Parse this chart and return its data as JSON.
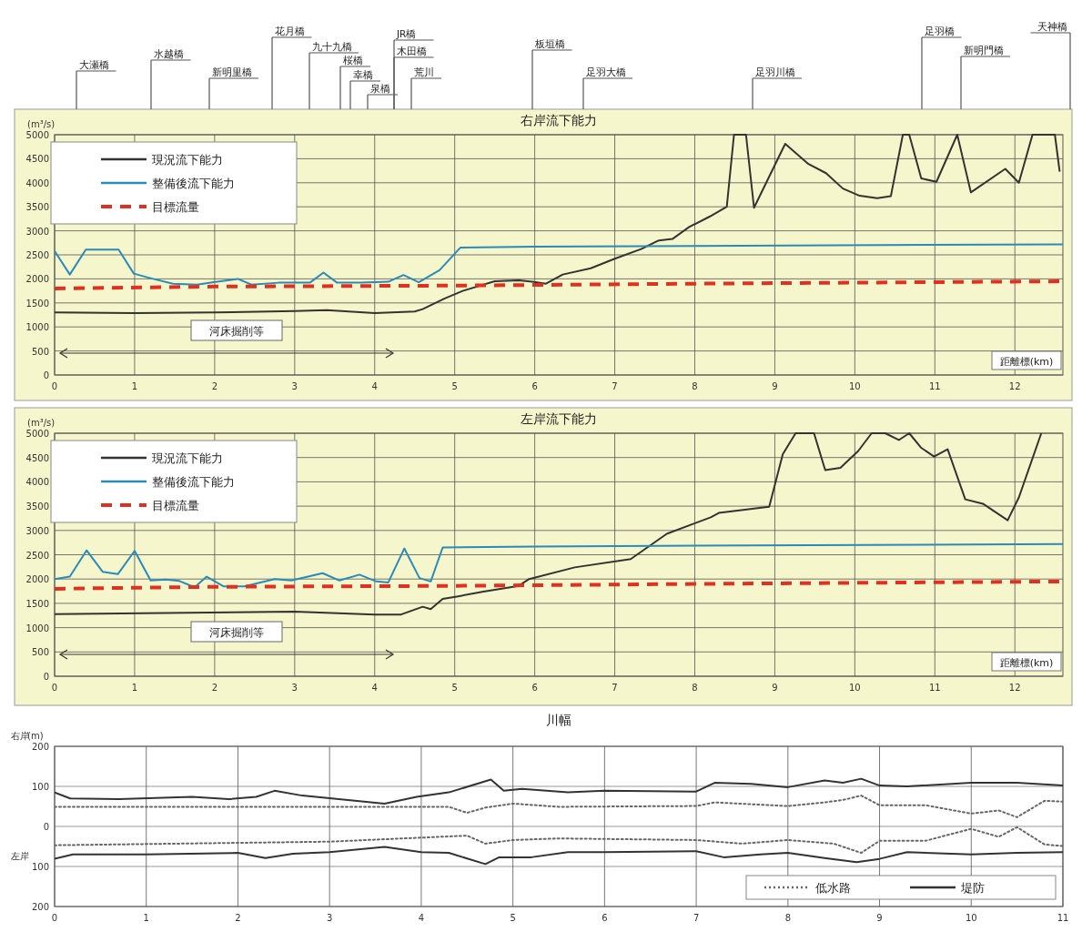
{
  "chart_data": [
    {
      "type": "line",
      "title": "右岸流下能力",
      "ylabel": "(m³/s)",
      "xlabel": "距離標(km)",
      "xlim": [
        0,
        12.6
      ],
      "xticks": [
        0,
        1,
        2,
        3,
        4,
        5,
        6,
        7,
        8,
        9,
        10,
        11,
        12
      ],
      "ylim": [
        0,
        5000
      ],
      "yticks": [
        0,
        500,
        1000,
        1500,
        2000,
        2500,
        3000,
        3500,
        4000,
        4500,
        5000
      ],
      "grid": true,
      "legend": "top left",
      "annotations": [
        "河床掘削等",
        "大瀬橋",
        "水越橋",
        "新明里橋",
        "花月橋",
        "九十九橋",
        "桜橋",
        "幸橋",
        "泉橋",
        "JR橋",
        "木田橋",
        "荒川",
        "板垣橋",
        "足羽大橋",
        "足羽川橋",
        "足羽橋",
        "新明門橋",
        "天神橋"
      ],
      "series": [
        {
          "name": "現況流下能力",
          "color": "#333333",
          "x": [
            0,
            1,
            2,
            3,
            3.4,
            4,
            4.5,
            4.6,
            4.87,
            5.1,
            5.5,
            5.8,
            5.97,
            6.14,
            6.35,
            6.7,
            7,
            7.33,
            7.55,
            7.72,
            7.93,
            8.19,
            8.4,
            8.49,
            8.64,
            8.74,
            9.13,
            9.42,
            9.64,
            9.85,
            10.06,
            10.28,
            10.45,
            10.6,
            10.68,
            10.83,
            11.02,
            11.28,
            11.45,
            11.88,
            12.05,
            12.22,
            12.5,
            12.56
          ],
          "values": [
            1300,
            1290,
            1300,
            1330,
            1350,
            1290,
            1320,
            1370,
            1590,
            1750,
            1950,
            1970,
            1940,
            1900,
            2090,
            2220,
            2420,
            2620,
            2800,
            2830,
            3080,
            3300,
            3500,
            5000,
            5000,
            3480,
            4810,
            4390,
            4200,
            3880,
            3730,
            3680,
            3720,
            5000,
            5000,
            4090,
            4020,
            5000,
            3800,
            4290,
            4000,
            5000,
            5000,
            4230
          ]
        },
        {
          "name": "整備後流下能力",
          "color": "#2a8ab8",
          "x": [
            0,
            0.19,
            0.39,
            0.8,
            0.99,
            1.23,
            1.48,
            1.78,
            1.99,
            2.29,
            2.46,
            2.8,
            3.19,
            3.36,
            3.53,
            3.83,
            4.17,
            4.36,
            4.55,
            4.81,
            5.07,
            6,
            12.6
          ],
          "values": [
            2580,
            2090,
            2610,
            2610,
            2110,
            2000,
            1900,
            1880,
            1930,
            2000,
            1880,
            1920,
            1920,
            2130,
            1920,
            1920,
            1940,
            2080,
            1930,
            2180,
            2650,
            2670,
            2720
          ]
        },
        {
          "name": "目標流量",
          "color": "#e03020",
          "line_style": "dashed",
          "x": [
            0,
            2,
            5,
            8,
            12.6
          ],
          "values": [
            1800,
            1840,
            1860,
            1900,
            1950
          ]
        }
      ]
    },
    {
      "type": "line",
      "title": "左岸流下能力",
      "ylabel": "(m³/s)",
      "xlabel": "距離標(km)",
      "xlim": [
        0,
        12.6
      ],
      "xticks": [
        0,
        1,
        2,
        3,
        4,
        5,
        6,
        7,
        8,
        9,
        10,
        11,
        12
      ],
      "ylim": [
        0,
        5000
      ],
      "yticks": [
        0,
        500,
        1000,
        1500,
        2000,
        2500,
        3000,
        3500,
        4000,
        4500,
        5000
      ],
      "grid": true,
      "legend": "top left",
      "annotations": [
        "河床掘削等"
      ],
      "series": [
        {
          "name": "現況流下能力",
          "color": "#333333",
          "x": [
            0,
            3,
            4,
            4.33,
            4.6,
            4.7,
            4.85,
            5.06,
            5.36,
            5.8,
            5.93,
            6.5,
            7.2,
            7.65,
            8.2,
            8.3,
            8.93,
            9.1,
            9.26,
            9.49,
            9.63,
            9.82,
            10.04,
            10.21,
            10.38,
            10.55,
            10.68,
            10.83,
            10.99,
            11.16,
            11.38,
            11.6,
            11.91,
            12.05,
            12.33
          ],
          "values": [
            1280,
            1330,
            1270,
            1270,
            1430,
            1380,
            1590,
            1650,
            1740,
            1860,
            2000,
            2240,
            2410,
            2930,
            3270,
            3360,
            3490,
            4570,
            5000,
            5000,
            4240,
            4290,
            4630,
            5000,
            5000,
            4860,
            5000,
            4700,
            4520,
            4670,
            3640,
            3550,
            3210,
            3680,
            5000
          ]
        },
        {
          "name": "整備後流下能力",
          "color": "#2a8ab8",
          "x": [
            0,
            0.19,
            0.4,
            0.6,
            0.79,
            1,
            1.2,
            1.39,
            1.56,
            1.75,
            1.9,
            2.11,
            2.37,
            2.75,
            2.96,
            3.35,
            3.56,
            3.81,
            4.02,
            4.17,
            4.37,
            4.56,
            4.7,
            4.85,
            6,
            12.6
          ],
          "values": [
            2000,
            2050,
            2590,
            2150,
            2100,
            2580,
            1970,
            1990,
            1960,
            1830,
            2050,
            1850,
            1850,
            2000,
            1970,
            2120,
            1970,
            2090,
            1950,
            1930,
            2630,
            2020,
            1950,
            2650,
            2670,
            2720
          ]
        },
        {
          "name": "目標流量",
          "color": "#e03020",
          "line_style": "dashed",
          "x": [
            0,
            2,
            5,
            8,
            12.6
          ],
          "values": [
            1800,
            1840,
            1860,
            1900,
            1950
          ]
        }
      ]
    },
    {
      "type": "line",
      "title": "川幅",
      "ylabel": "(m)",
      "xlim": [
        0,
        11
      ],
      "xticks": [
        0,
        1,
        2,
        3,
        4,
        5,
        6,
        7,
        8,
        9,
        10,
        11
      ],
      "ylim": [
        -200,
        200
      ],
      "yticks": [
        {
          "value": -200,
          "label": "200"
        },
        {
          "value": -100,
          "label": "100"
        },
        0,
        100,
        200
      ],
      "grid": true,
      "legend": "bottom right",
      "annotations": [
        "右岸",
        "左岸"
      ],
      "series": [
        {
          "name": "低水路",
          "color": "#666666",
          "line_style": "dotted",
          "x": [
            0,
            4.3,
            4.5,
            4.7,
            5,
            5.5,
            7,
            7.2,
            8,
            8.4,
            8.6,
            8.8,
            9,
            9.5,
            10,
            10.3,
            10.5,
            10.8,
            11
          ],
          "values": [
            49,
            49,
            34,
            47,
            57,
            49,
            51,
            60,
            51,
            60,
            66,
            77,
            53,
            53,
            32,
            40,
            23,
            64,
            62
          ]
        },
        {
          "color": "#666666",
          "line_style": "dotted",
          "x": [
            0,
            3,
            4.5,
            4.7,
            5,
            5.5,
            7,
            7.5,
            8,
            8.5,
            8.8,
            9,
            9.5,
            10,
            10.3,
            10.5,
            10.8,
            11
          ],
          "values": [
            -47,
            -38,
            -23,
            -43,
            -34,
            -30,
            -34,
            -43,
            -34,
            -43,
            -66,
            -36,
            -36,
            -6,
            -26,
            -2,
            -45,
            -49
          ]
        },
        {
          "name": "堤防",
          "color": "#333333",
          "x": [
            0,
            0.17,
            0.7,
            1.5,
            1.9,
            2.2,
            2.4,
            2.7,
            3.1,
            3.6,
            3.95,
            4.3,
            4.76,
            4.9,
            5.1,
            5.6,
            6,
            7,
            7.2,
            7.6,
            8,
            8.4,
            8.6,
            8.8,
            9,
            9.3,
            10,
            10.5,
            11
          ],
          "values": [
            85,
            70,
            68,
            74,
            68,
            74,
            89,
            77,
            68,
            57,
            74,
            85,
            117,
            89,
            94,
            85,
            89,
            87,
            109,
            106,
            98,
            115,
            109,
            119,
            102,
            100,
            109,
            109,
            102
          ]
        },
        {
          "color": "#333333",
          "x": [
            0,
            0.2,
            1,
            2,
            2.3,
            2.6,
            3,
            3.6,
            4,
            4.3,
            4.7,
            4.85,
            5.2,
            5.6,
            6,
            7,
            7.3,
            7.7,
            8,
            8.4,
            8.75,
            9,
            9.3,
            10,
            10.5,
            11
          ],
          "values": [
            -81,
            -70,
            -70,
            -66,
            -79,
            -68,
            -64,
            -51,
            -64,
            -66,
            -94,
            -77,
            -77,
            -64,
            -64,
            -62,
            -77,
            -70,
            -66,
            -79,
            -89,
            -81,
            -64,
            -70,
            -66,
            -64
          ]
        }
      ]
    }
  ]
}
